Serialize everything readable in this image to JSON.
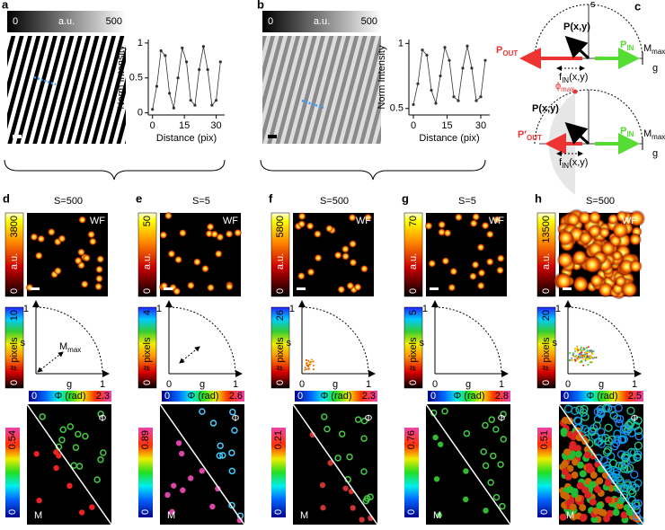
{
  "chart_data": [
    {
      "type": "line",
      "ylabel": "Norm Intensity",
      "xlabel": "Distance (pix)",
      "x": [
        0,
        2,
        4,
        6,
        8,
        10,
        12,
        14,
        16,
        18,
        20,
        22,
        24,
        26,
        28,
        30,
        32
      ],
      "values": [
        0.05,
        0.38,
        0.89,
        0.82,
        0.28,
        0.07,
        0.5,
        0.93,
        0.73,
        0.18,
        0.11,
        0.62,
        0.95,
        0.62,
        0.11,
        0.18,
        0.73
      ],
      "color": "#333333",
      "xlim": [
        -2,
        34
      ],
      "xticks": [
        0,
        15,
        30
      ],
      "ylim": [
        -0.03,
        1.05
      ],
      "yticks": [
        0,
        0.5,
        1
      ]
    },
    {
      "type": "line",
      "ylabel": "Norm Intensity",
      "xlabel": "Distance (pix)",
      "x": [
        0,
        2,
        4,
        6,
        8,
        10,
        12,
        14,
        16,
        18,
        20,
        22,
        24,
        26,
        28,
        30,
        32
      ],
      "values": [
        0.53,
        0.69,
        0.95,
        0.91,
        0.64,
        0.54,
        0.75,
        0.97,
        0.87,
        0.59,
        0.56,
        0.81,
        0.98,
        0.81,
        0.56,
        0.59,
        0.87
      ],
      "color": "#333333",
      "xlim": [
        -2,
        34
      ],
      "xticks": [
        0,
        15,
        30
      ],
      "ylim": [
        0.45,
        1.03
      ],
      "yticks": [
        0.5,
        1
      ]
    }
  ],
  "panel_a": {
    "label": "a",
    "colorbar": [
      "0",
      "a.u.",
      "500"
    ]
  },
  "panel_b": {
    "label": "b",
    "colorbar": [
      "0",
      "a.u.",
      "500"
    ]
  },
  "panel_c": {
    "label": "c",
    "top": {
      "s": "s",
      "p": "P(x,y)",
      "pout": {
        "main": "P",
        "sub": "OUT"
      },
      "pin": {
        "main": "P",
        "sub": "IN"
      },
      "mmax": {
        "main": "M",
        "sub": "max"
      },
      "g": "g",
      "fin": {
        "main": "f",
        "sub": "IN",
        "rest": "(x,y)"
      }
    },
    "bottom": {
      "phimax": {
        "main": "ϕ",
        "sub": "max"
      },
      "p": "P(x,y)",
      "pout": {
        "main": "P′",
        "sub": "OUT"
      },
      "pin": {
        "main": "P",
        "sub": "IN"
      },
      "mmax": {
        "main": "M",
        "sub": "max"
      },
      "g": "g",
      "fin": {
        "main": "f",
        "sub": "IN",
        "rest": "(x,y)"
      }
    }
  },
  "panels": [
    {
      "label": "d",
      "title": "S=500",
      "wf": "WF",
      "intensity_bar": [
        "0",
        "a.u.",
        "3800"
      ],
      "count_bar": [
        "0",
        "# pixels",
        "10"
      ],
      "phasor": {
        "top": "1",
        "s": "s",
        "g": "g",
        "right": "1",
        "mmax": {
          "main": "M",
          "sub": "max"
        }
      },
      "phase_bar": [
        "0",
        "Φ (rad)",
        "2.3"
      ],
      "mod_bar": [
        "0",
        "0.54"
      ],
      "phi": "Φ",
      "m": "M"
    },
    {
      "label": "e",
      "title": "S=5",
      "wf": "WF",
      "intensity_bar": [
        "0",
        "a.u.",
        "50"
      ],
      "count_bar": [
        "0",
        "# pixels",
        "4"
      ],
      "phasor": {
        "top": "1",
        "zero": "0",
        "g": "g",
        "right": "1"
      },
      "phase_bar": [
        "0",
        "Φ (rad)",
        "2.6"
      ],
      "mod_bar": [
        "0",
        "0.89"
      ],
      "phi": "Φ",
      "m": "M"
    },
    {
      "label": "f",
      "title": "S=500",
      "wf": "WF",
      "intensity_bar": [
        "0",
        "a.u.",
        "5800"
      ],
      "count_bar": [
        "0",
        "# pixels",
        "26"
      ],
      "phasor": {
        "top": "1",
        "s": "s",
        "zero": "0",
        "g": "g",
        "right": "1"
      },
      "phase_bar": [
        "0",
        "Φ (rad)",
        "2.3"
      ],
      "mod_bar": [
        "0",
        "0.21"
      ],
      "phi": "Φ",
      "m": "M"
    },
    {
      "label": "g",
      "title": "S=5",
      "wf": "WF",
      "intensity_bar": [
        "0",
        "a.u.",
        "70"
      ],
      "count_bar": [
        "0",
        "# pixels",
        "5"
      ],
      "phasor": {
        "top": "1",
        "s": "s",
        "zero": "0",
        "g": "g",
        "right": "1"
      },
      "phase_bar": [
        "0",
        "Φ (rad)",
        "2.8"
      ],
      "mod_bar": [
        "0",
        "0.76"
      ],
      "phi": "Φ",
      "m": "M"
    },
    {
      "label": "h",
      "title": "S=500",
      "wf": "WF",
      "intensity_bar": [
        "0",
        "a.u.",
        "13500"
      ],
      "count_bar": [
        "0",
        "# pixels",
        "20"
      ],
      "phasor": {
        "top": "1",
        "s": "s",
        "zero": "0",
        "g": "g",
        "right": "1"
      },
      "phase_bar": [
        "0",
        "Φ (rad)",
        "2.5"
      ],
      "mod_bar": [
        "0",
        "0.51"
      ],
      "phi": "Φ",
      "m": "M"
    }
  ]
}
